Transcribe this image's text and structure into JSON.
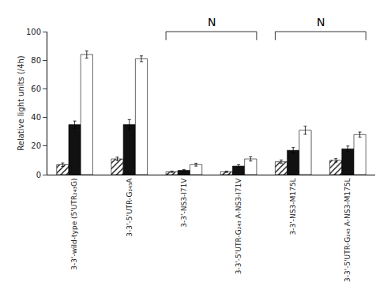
{
  "chart_data": {
    "type": "bar",
    "categories": [
      "3-3'-wild-type (5'UTR₂₄₃G)",
      "3-3'-5'UTR-G₂₄₃A",
      "3-3'-NS3-I71V",
      "3-3'-5'UTR-G₂₄₃ A-NS3-I71V",
      "3-3'-NS3-M175L",
      "3-3'-5'UTR-G₂₄₃ A-NS3-M175L"
    ],
    "series": [
      {
        "color": "#bbbbbb",
        "values": [
          7,
          11,
          2,
          2,
          9,
          10
        ],
        "errors": [
          1.2,
          1.2,
          0.4,
          0.4,
          1.2,
          1.2
        ]
      },
      {
        "color": "#111111",
        "values": [
          35,
          35,
          3,
          6,
          17,
          18
        ],
        "errors": [
          2.5,
          3.5,
          0.5,
          1.0,
          2.0,
          2.0
        ]
      },
      {
        "color": "#ffffff",
        "values": [
          84,
          81,
          7,
          11,
          31,
          28
        ],
        "errors": [
          2.5,
          2.0,
          1.0,
          1.5,
          2.8,
          1.8
        ]
      }
    ],
    "ylabel": "Relative light units (/4h)",
    "ylim": [
      0,
      100
    ],
    "yticks": [
      0,
      20,
      40,
      60,
      80,
      100
    ],
    "grid": false,
    "annotations": [
      {
        "text": "N",
        "from": "3-3'-NS3-I71V",
        "to": "3-3'-5'UTR-G₂₄₃ A-NS3-I71V"
      },
      {
        "text": "N",
        "from": "3-3'-NS3-M175L",
        "to": "3-3'-5'UTR-G₂₄₃ A-NS3-M175L"
      }
    ]
  }
}
